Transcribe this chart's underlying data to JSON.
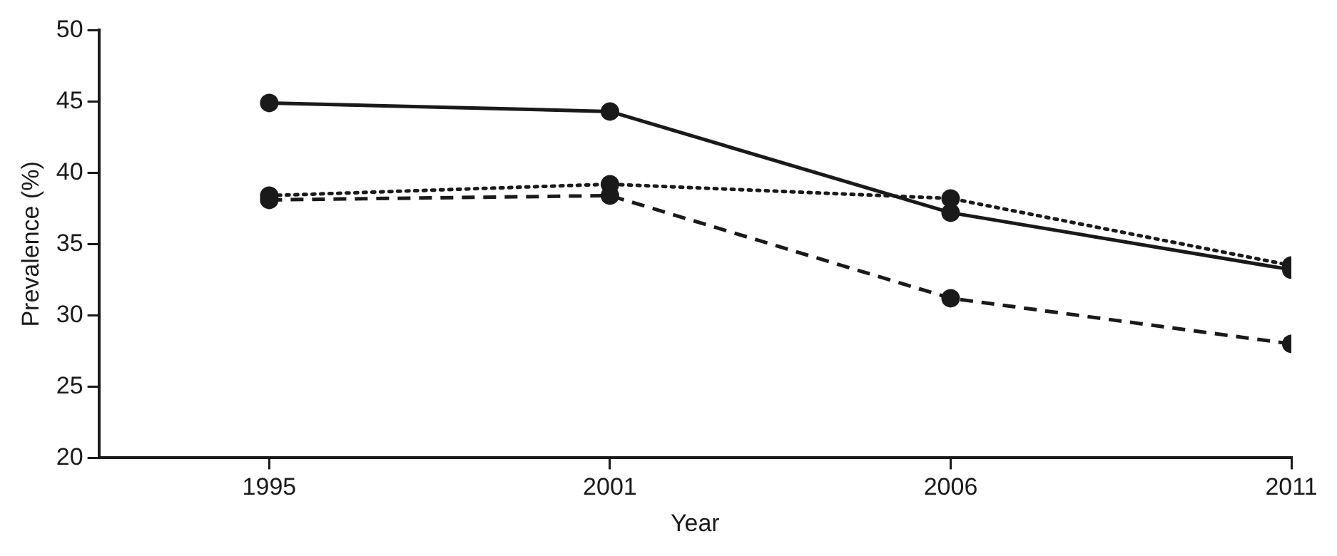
{
  "chart_data": {
    "type": "line",
    "xlabel": "Year",
    "ylabel": "Prevalence (%)",
    "categories": [
      "1995",
      "2001",
      "2006",
      "2011"
    ],
    "series": [
      {
        "color": "#1a1a1a",
        "line_style": "solid",
        "values": [
          44.9,
          44.3,
          37.2,
          33.2
        ]
      },
      {
        "color": "#1a1a1a",
        "line_style": "dotted",
        "values": [
          38.4,
          39.2,
          38.2,
          33.5
        ]
      },
      {
        "color": "#1a1a1a",
        "line_style": "dashed",
        "values": [
          38.1,
          38.4,
          31.2,
          28.0
        ]
      }
    ],
    "ylim": [
      20,
      50
    ],
    "yticks": [
      20,
      25,
      30,
      35,
      40,
      45,
      50
    ],
    "grid": false,
    "legend": false,
    "marker": "circle"
  }
}
